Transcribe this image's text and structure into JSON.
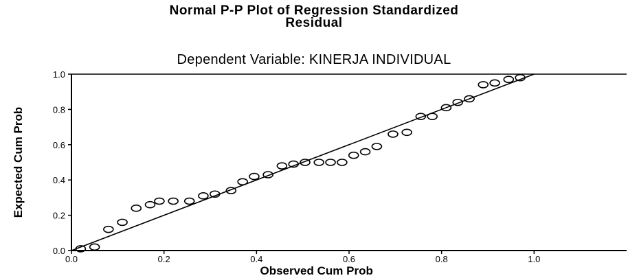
{
  "chart_data": {
    "type": "scatter",
    "title": "Normal P-P Plot of Regression Standardized Residual",
    "title_lines": [
      "Normal P-P Plot of Regression Standardized",
      "Residual"
    ],
    "subtitle": "Dependent Variable: KINERJA INDIVIDUAL",
    "xlabel": "Observed Cum Prob",
    "ylabel": "Expected Cum Prob",
    "xlim": [
      0,
      1.2
    ],
    "ylim": [
      0,
      1
    ],
    "xticks": [
      "0.0",
      "0.2",
      "0.4",
      "0.6",
      "0.8",
      "1.0"
    ],
    "yticks": [
      "0.0",
      "0.2",
      "0.4",
      "0.6",
      "0.8",
      "1.0"
    ],
    "grid": false,
    "reference_line": {
      "x": [
        0,
        1
      ],
      "y": [
        0,
        1
      ]
    },
    "points": [
      {
        "x": 0.02,
        "y": 0.01
      },
      {
        "x": 0.05,
        "y": 0.02
      },
      {
        "x": 0.08,
        "y": 0.12
      },
      {
        "x": 0.11,
        "y": 0.16
      },
      {
        "x": 0.14,
        "y": 0.24
      },
      {
        "x": 0.17,
        "y": 0.26
      },
      {
        "x": 0.19,
        "y": 0.28
      },
      {
        "x": 0.22,
        "y": 0.28
      },
      {
        "x": 0.255,
        "y": 0.28
      },
      {
        "x": 0.285,
        "y": 0.31
      },
      {
        "x": 0.31,
        "y": 0.32
      },
      {
        "x": 0.345,
        "y": 0.34
      },
      {
        "x": 0.37,
        "y": 0.39
      },
      {
        "x": 0.395,
        "y": 0.42
      },
      {
        "x": 0.425,
        "y": 0.43
      },
      {
        "x": 0.455,
        "y": 0.48
      },
      {
        "x": 0.48,
        "y": 0.49
      },
      {
        "x": 0.505,
        "y": 0.5
      },
      {
        "x": 0.535,
        "y": 0.5
      },
      {
        "x": 0.56,
        "y": 0.5
      },
      {
        "x": 0.585,
        "y": 0.5
      },
      {
        "x": 0.61,
        "y": 0.54
      },
      {
        "x": 0.635,
        "y": 0.56
      },
      {
        "x": 0.66,
        "y": 0.59
      },
      {
        "x": 0.695,
        "y": 0.66
      },
      {
        "x": 0.725,
        "y": 0.67
      },
      {
        "x": 0.755,
        "y": 0.76
      },
      {
        "x": 0.78,
        "y": 0.76
      },
      {
        "x": 0.81,
        "y": 0.81
      },
      {
        "x": 0.835,
        "y": 0.84
      },
      {
        "x": 0.86,
        "y": 0.86
      },
      {
        "x": 0.89,
        "y": 0.94
      },
      {
        "x": 0.915,
        "y": 0.95
      },
      {
        "x": 0.945,
        "y": 0.97
      },
      {
        "x": 0.97,
        "y": 0.98
      }
    ]
  }
}
